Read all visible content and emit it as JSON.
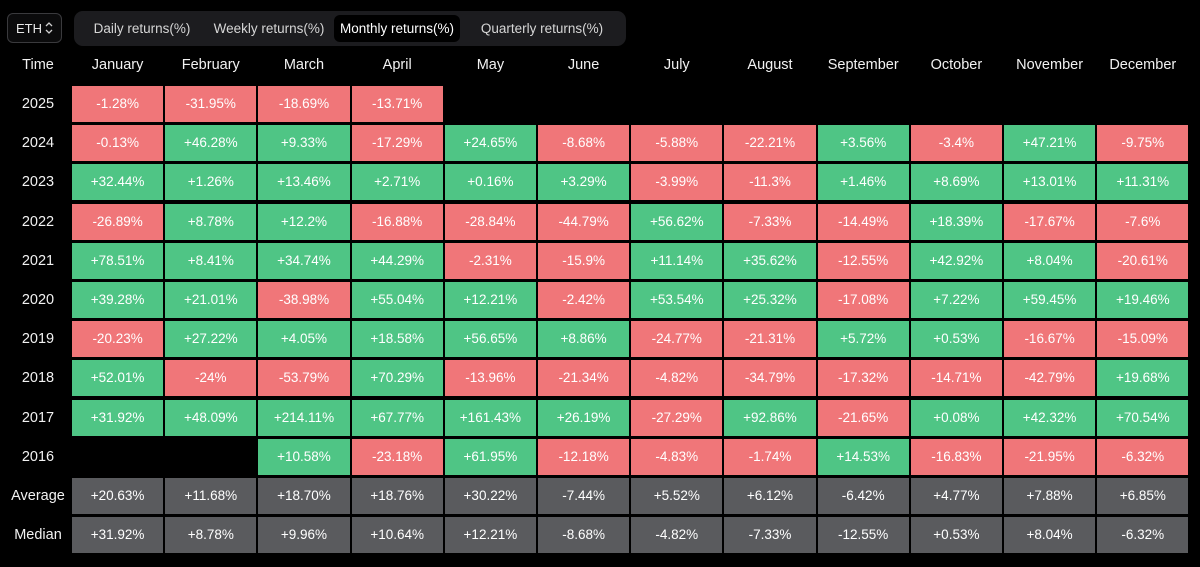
{
  "asset_select": {
    "value": "ETH"
  },
  "tabs": [
    {
      "label": "Daily returns(%)",
      "active": false
    },
    {
      "label": "Weekly returns(%)",
      "active": false
    },
    {
      "label": "Monthly returns(%)",
      "active": true
    },
    {
      "label": "Quarterly returns(%)",
      "active": false
    }
  ],
  "table": {
    "corner_label": "Time",
    "months": [
      "January",
      "February",
      "March",
      "April",
      "May",
      "June",
      "July",
      "August",
      "September",
      "October",
      "November",
      "December"
    ],
    "rows": [
      {
        "year": "2025",
        "values": [
          "-1.28%",
          "-31.95%",
          "-18.69%",
          "-13.71%",
          "",
          "",
          "",
          "",
          "",
          "",
          "",
          ""
        ]
      },
      {
        "year": "2024",
        "values": [
          "-0.13%",
          "+46.28%",
          "+9.33%",
          "-17.29%",
          "+24.65%",
          "-8.68%",
          "-5.88%",
          "-22.21%",
          "+3.56%",
          "-3.4%",
          "+47.21%",
          "-9.75%"
        ]
      },
      {
        "year": "2023",
        "values": [
          "+32.44%",
          "+1.26%",
          "+13.46%",
          "+2.71%",
          "+0.16%",
          "+3.29%",
          "-3.99%",
          "-11.3%",
          "+1.46%",
          "+8.69%",
          "+13.01%",
          "+11.31%"
        ]
      },
      {
        "year": "2022",
        "values": [
          "-26.89%",
          "+8.78%",
          "+12.2%",
          "-16.88%",
          "-28.84%",
          "-44.79%",
          "+56.62%",
          "-7.33%",
          "-14.49%",
          "+18.39%",
          "-17.67%",
          "-7.6%"
        ]
      },
      {
        "year": "2021",
        "values": [
          "+78.51%",
          "+8.41%",
          "+34.74%",
          "+44.29%",
          "-2.31%",
          "-15.9%",
          "+11.14%",
          "+35.62%",
          "-12.55%",
          "+42.92%",
          "+8.04%",
          "-20.61%"
        ]
      },
      {
        "year": "2020",
        "values": [
          "+39.28%",
          "+21.01%",
          "-38.98%",
          "+55.04%",
          "+12.21%",
          "-2.42%",
          "+53.54%",
          "+25.32%",
          "-17.08%",
          "+7.22%",
          "+59.45%",
          "+19.46%"
        ]
      },
      {
        "year": "2019",
        "values": [
          "-20.23%",
          "+27.22%",
          "+4.05%",
          "+18.58%",
          "+56.65%",
          "+8.86%",
          "-24.77%",
          "-21.31%",
          "+5.72%",
          "+0.53%",
          "-16.67%",
          "-15.09%"
        ]
      },
      {
        "year": "2018",
        "values": [
          "+52.01%",
          "-24%",
          "-53.79%",
          "+70.29%",
          "-13.96%",
          "-21.34%",
          "-4.82%",
          "-34.79%",
          "-17.32%",
          "-14.71%",
          "-42.79%",
          "+19.68%"
        ]
      },
      {
        "year": "2017",
        "values": [
          "+31.92%",
          "+48.09%",
          "+214.11%",
          "+67.77%",
          "+161.43%",
          "+26.19%",
          "-27.29%",
          "+92.86%",
          "-21.65%",
          "+0.08%",
          "+42.32%",
          "+70.54%"
        ]
      },
      {
        "year": "2016",
        "values": [
          "",
          "",
          "+10.58%",
          "-23.18%",
          "+61.95%",
          "-12.18%",
          "-4.83%",
          "-1.74%",
          "+14.53%",
          "-16.83%",
          "-21.95%",
          "-6.32%"
        ]
      }
    ],
    "stats": [
      {
        "label": "Average",
        "values": [
          "+20.63%",
          "+11.68%",
          "+18.70%",
          "+18.76%",
          "+30.22%",
          "-7.44%",
          "+5.52%",
          "+6.12%",
          "-6.42%",
          "+4.77%",
          "+7.88%",
          "+6.85%"
        ]
      },
      {
        "label": "Median",
        "values": [
          "+31.92%",
          "+8.78%",
          "+9.96%",
          "+10.64%",
          "+12.21%",
          "-8.68%",
          "-4.82%",
          "-7.33%",
          "-12.55%",
          "+0.53%",
          "+8.04%",
          "-6.32%"
        ]
      }
    ]
  },
  "colors": {
    "positive": "#4fc585",
    "negative": "#f07679",
    "stat": "#5a5b5e",
    "background": "#000000"
  }
}
